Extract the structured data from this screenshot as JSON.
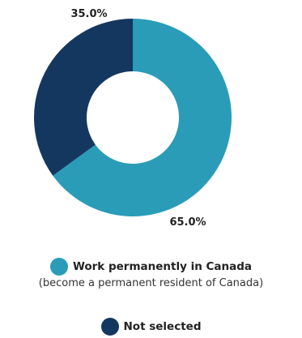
{
  "chart_data": {
    "type": "pie",
    "donut": true,
    "categories": [
      "Work permanently in Canada",
      "Not selected"
    ],
    "values": [
      65.0,
      35.0
    ],
    "data_labels": [
      "65.0%",
      "35.0%"
    ],
    "colors": [
      "#2a9cb8",
      "#143760"
    ],
    "legend": [
      {
        "label": "Work permanently in Canada",
        "sublabel": "(become a permanent resident of Canada)",
        "color": "#2a9cb8"
      },
      {
        "label": "Not selected",
        "color": "#143760"
      }
    ],
    "legend_position": "bottom",
    "title": ""
  }
}
